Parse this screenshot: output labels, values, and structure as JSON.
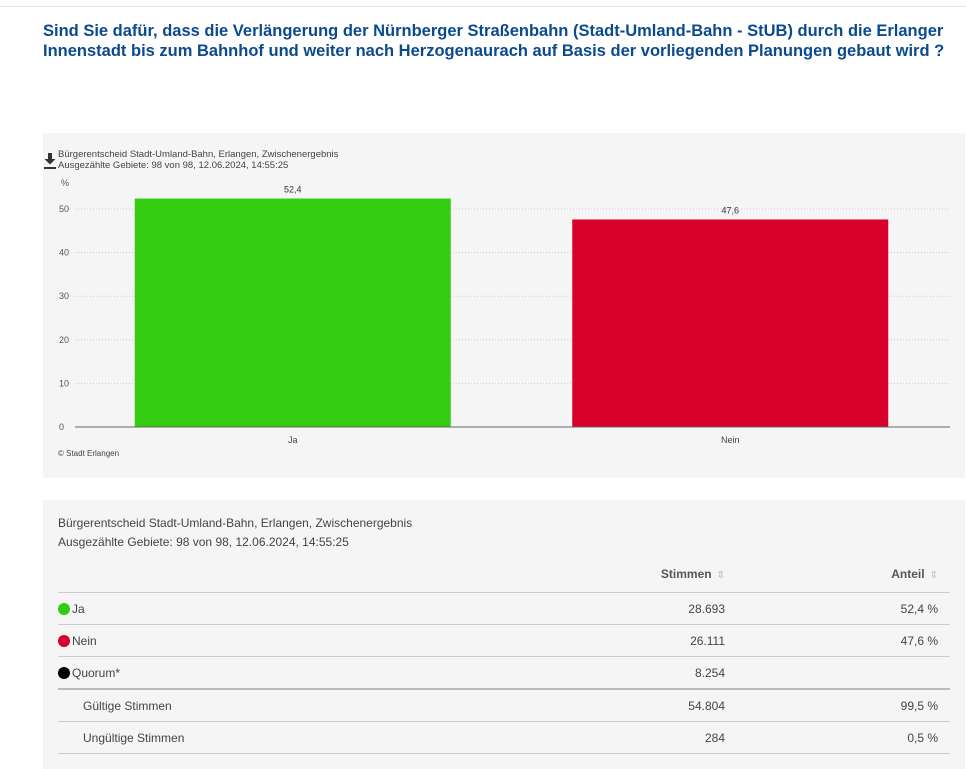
{
  "question": "Sind Sie dafür, dass die Verlängerung der Nürnberger Straßenbahn (Stadt-Umland-Bahn - StUB) durch die Erlanger Innenstadt bis zum Bahnhof und weiter nach Herzogenaurach auf Basis der vorliegenden Planungen gebaut wird ?",
  "chart_data": {
    "type": "bar",
    "title": "Bürgerentscheid Stadt-Umland-Bahn, Erlangen, Zwischenergebnis",
    "subtitle": "Ausgezählte Gebiete: 98 von 98, 12.06.2024, 14:55:25",
    "ylabel": "%",
    "xlabel": "",
    "categories": [
      "Ja",
      "Nein"
    ],
    "values": [
      52.4,
      47.6
    ],
    "value_labels": [
      "52,4",
      "47,6"
    ],
    "colors": [
      "#33cc11",
      "#d7002a"
    ],
    "ylim": [
      0,
      50
    ],
    "yticks": [
      "0",
      "10",
      "20",
      "30",
      "40",
      "50"
    ],
    "grid": true,
    "credit": "© Stadt Erlangen",
    "download_icon": "download-icon"
  },
  "table": {
    "title": "Bürgerentscheid Stadt-Umland-Bahn, Erlangen, Zwischenergebnis",
    "subtitle": "Ausgezählte Gebiete: 98 von 98, 12.06.2024, 14:55:25",
    "headers": {
      "votes": "Stimmen",
      "share": "Anteil"
    },
    "rows": [
      {
        "label": "Ja",
        "votes": "28.693",
        "share": "52,4 %",
        "color": "#33cc11"
      },
      {
        "label": "Nein",
        "votes": "26.111",
        "share": "47,6 %",
        "color": "#d7002a"
      },
      {
        "label": "Quorum*",
        "votes": "8.254",
        "share": "",
        "color": "#000000"
      },
      {
        "label": "Gültige Stimmen",
        "votes": "54.804",
        "share": "99,5 %"
      },
      {
        "label": "Ungültige Stimmen",
        "votes": "284",
        "share": "0,5 %"
      }
    ]
  }
}
